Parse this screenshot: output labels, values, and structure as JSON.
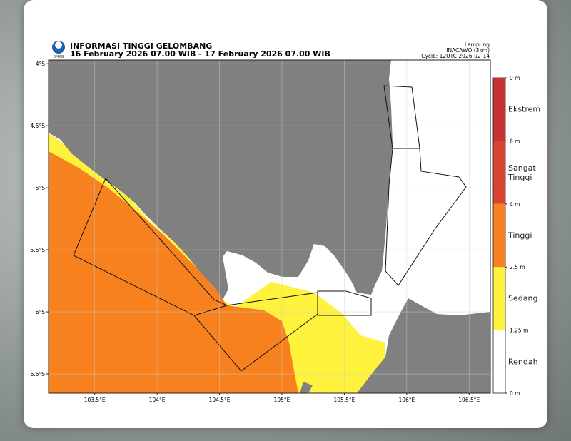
{
  "header": {
    "logo_text": "BMKG",
    "title": "INFORMASI TINGGI GELOMBANG",
    "subtitle": "16 February 2026 07.00 WIB - 17 February 2026 07.00 WIB",
    "region": "Lampung",
    "model": "INACAWO (3km)",
    "cycle": "Cycle: 12UTC 2026-02-14"
  },
  "map": {
    "xlim": [
      103.13,
      106.67
    ],
    "ylim": [
      -6.655,
      -3.97
    ],
    "xticks": [
      {
        "value": 103.5,
        "label": "103.5°E"
      },
      {
        "value": 104,
        "label": "104°E"
      },
      {
        "value": 104.5,
        "label": "104.5°E"
      },
      {
        "value": 105,
        "label": "105°E"
      },
      {
        "value": 105.5,
        "label": "105.5°E"
      },
      {
        "value": 106,
        "label": "106°E"
      },
      {
        "value": 106.5,
        "label": "106.5°E"
      }
    ],
    "yticks": [
      {
        "value": -4,
        "label": "4°S"
      },
      {
        "value": -4.5,
        "label": "4.5°S"
      },
      {
        "value": -5,
        "label": "5°S"
      },
      {
        "value": -5.5,
        "label": "5.5°S"
      },
      {
        "value": -6,
        "label": "6°S"
      },
      {
        "value": -6.5,
        "label": "6.5°S"
      }
    ]
  },
  "legend": {
    "levels": [
      {
        "value": 0,
        "label": "0 m"
      },
      {
        "value": 1.25,
        "label": "1.25 m"
      },
      {
        "value": 2.5,
        "label": "2.5 m"
      },
      {
        "value": 4,
        "label": "4 m"
      },
      {
        "value": 6,
        "label": "6 m"
      },
      {
        "value": 9,
        "label": "9 m"
      }
    ],
    "classes": [
      {
        "name": "Rendah",
        "color": "#ffffff"
      },
      {
        "name": "Sedang",
        "color": "#fff23c"
      },
      {
        "name": "Tinggi",
        "color": "#f7811f"
      },
      {
        "name": "Sangat Tinggi",
        "color": "#d9432f"
      },
      {
        "name": "Ekstrem",
        "color": "#c73332"
      }
    ]
  }
}
